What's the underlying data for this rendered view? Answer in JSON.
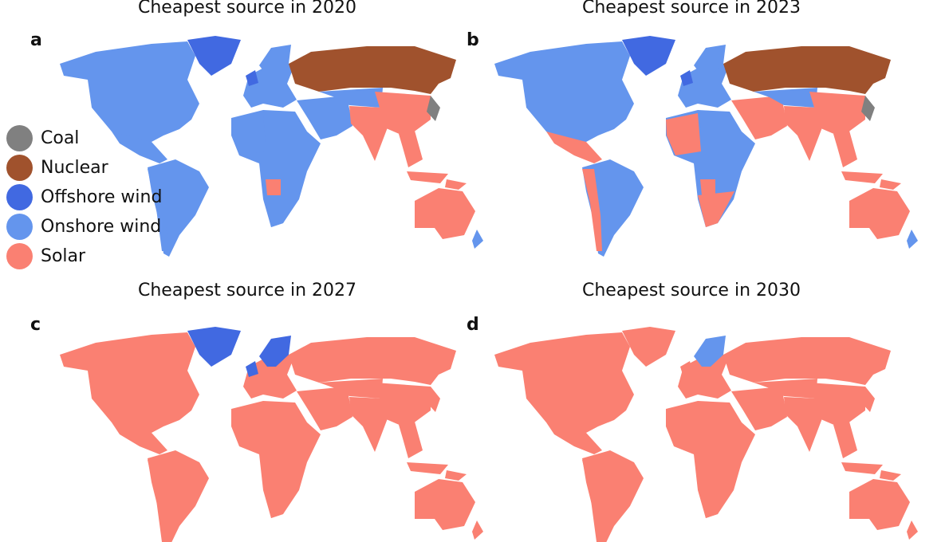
{
  "colors": {
    "coal": "#808080",
    "nuclear": "#a0522d",
    "offshore": "#4169e1",
    "onshore": "#6495ed",
    "solar": "#fa8072"
  },
  "legend": [
    {
      "key": "coal",
      "label": "Coal"
    },
    {
      "key": "nuclear",
      "label": "Nuclear"
    },
    {
      "key": "offshore",
      "label": "Offshore wind"
    },
    {
      "key": "onshore",
      "label": "Onshore wind"
    },
    {
      "key": "solar",
      "label": "Solar"
    }
  ],
  "panels": [
    {
      "letter": "a",
      "title": "Cheapest source in 2020",
      "regions": {
        "north_america": "onshore",
        "central_america": "onshore",
        "greenland": "offshore",
        "south_america": "onshore",
        "south_america_west": "onshore",
        "europe": "onshore",
        "uk": "offshore",
        "scandinavia": "onshore",
        "russia": "nuclear",
        "africa": "onshore",
        "africa_west": "onshore",
        "africa_south": "onshore",
        "angola": "solar",
        "middle_east": "onshore",
        "central_asia": "onshore",
        "east_asia": "solar",
        "south_asia": "solar",
        "southeast_asia": "solar",
        "japan_korea": "coal",
        "australia": "solar",
        "new_zealand": "onshore"
      }
    },
    {
      "letter": "b",
      "title": "Cheapest source in 2023",
      "regions": {
        "north_america": "onshore",
        "central_america": "solar",
        "greenland": "offshore",
        "south_america": "onshore",
        "south_america_west": "solar",
        "europe": "onshore",
        "uk": "offshore",
        "scandinavia": "onshore",
        "russia": "nuclear",
        "africa": "onshore",
        "africa_west": "solar",
        "africa_south": "solar",
        "angola": "solar",
        "middle_east": "solar",
        "central_asia": "onshore",
        "east_asia": "solar",
        "south_asia": "solar",
        "southeast_asia": "solar",
        "japan_korea": "coal",
        "australia": "solar",
        "new_zealand": "onshore"
      }
    },
    {
      "letter": "c",
      "title": "Cheapest source in 2027",
      "regions": {
        "north_america": "solar",
        "central_america": "solar",
        "greenland": "offshore",
        "south_america": "solar",
        "south_america_west": "solar",
        "europe": "solar",
        "uk": "offshore",
        "scandinavia": "offshore",
        "russia": "solar",
        "africa": "solar",
        "africa_west": "solar",
        "africa_south": "solar",
        "angola": "solar",
        "middle_east": "solar",
        "central_asia": "solar",
        "east_asia": "solar",
        "south_asia": "solar",
        "southeast_asia": "solar",
        "japan_korea": "solar",
        "australia": "solar",
        "new_zealand": "solar"
      }
    },
    {
      "letter": "d",
      "title": "Cheapest source in 2030",
      "regions": {
        "north_america": "solar",
        "central_america": "solar",
        "greenland": "solar",
        "south_america": "solar",
        "south_america_west": "solar",
        "europe": "solar",
        "uk": "solar",
        "scandinavia": "onshore",
        "russia": "solar",
        "africa": "solar",
        "africa_west": "solar",
        "africa_south": "solar",
        "angola": "solar",
        "middle_east": "solar",
        "central_asia": "solar",
        "east_asia": "solar",
        "south_asia": "solar",
        "southeast_asia": "solar",
        "japan_korea": "solar",
        "australia": "solar",
        "new_zealand": "solar"
      }
    }
  ]
}
